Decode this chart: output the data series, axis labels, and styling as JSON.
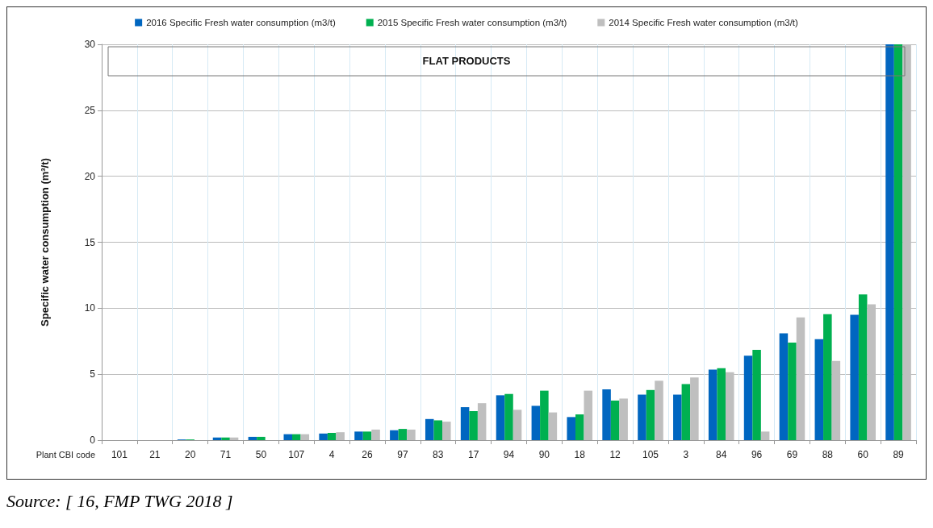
{
  "chart_data": {
    "type": "bar",
    "xlabel": "Plant CBI code",
    "ylabel": "Specific water consumption (m³/t)",
    "categories": [
      "101",
      "21",
      "20",
      "71",
      "50",
      "107",
      "4",
      "26",
      "97",
      "83",
      "17",
      "94",
      "90",
      "18",
      "12",
      "105",
      "3",
      "84",
      "96",
      "69",
      "88",
      "60",
      "89"
    ],
    "series": [
      {
        "name": "2016 Specific Fresh water consumption (m3/t)",
        "color": "#0066c0",
        "values": [
          0,
          0,
          0.05,
          0.2,
          0.25,
          0.45,
          0.5,
          0.65,
          0.75,
          1.6,
          2.5,
          3.4,
          2.6,
          1.75,
          3.85,
          3.45,
          3.45,
          5.35,
          6.4,
          8.1,
          7.65,
          9.5,
          30
        ]
      },
      {
        "name": "2015 Specific Fresh water consumption (m3/t)",
        "color": "#00b050",
        "values": [
          0,
          0,
          0.05,
          0.2,
          0.25,
          0.45,
          0.55,
          0.65,
          0.85,
          1.5,
          2.2,
          3.5,
          3.75,
          1.95,
          3.0,
          3.8,
          4.25,
          5.45,
          6.85,
          7.4,
          9.55,
          11.05,
          30
        ]
      },
      {
        "name": "2014 Specific Fresh water consumption (m3/t)",
        "color": "#bfbfbf",
        "values": [
          0,
          0,
          null,
          0.2,
          null,
          0.45,
          0.6,
          0.8,
          0.8,
          1.4,
          2.8,
          2.3,
          2.1,
          3.75,
          3.15,
          4.5,
          4.75,
          5.15,
          0.65,
          9.3,
          6.0,
          10.3,
          30
        ]
      }
    ],
    "ylim": [
      0,
      30
    ],
    "yticks": [
      0,
      5,
      10,
      15,
      20,
      25,
      30
    ],
    "grid": true,
    "legend": "top",
    "annotations": [
      "FLAT PRODUCTS",
      "Source: [ 16, FMP TWG 2018 ]"
    ]
  }
}
